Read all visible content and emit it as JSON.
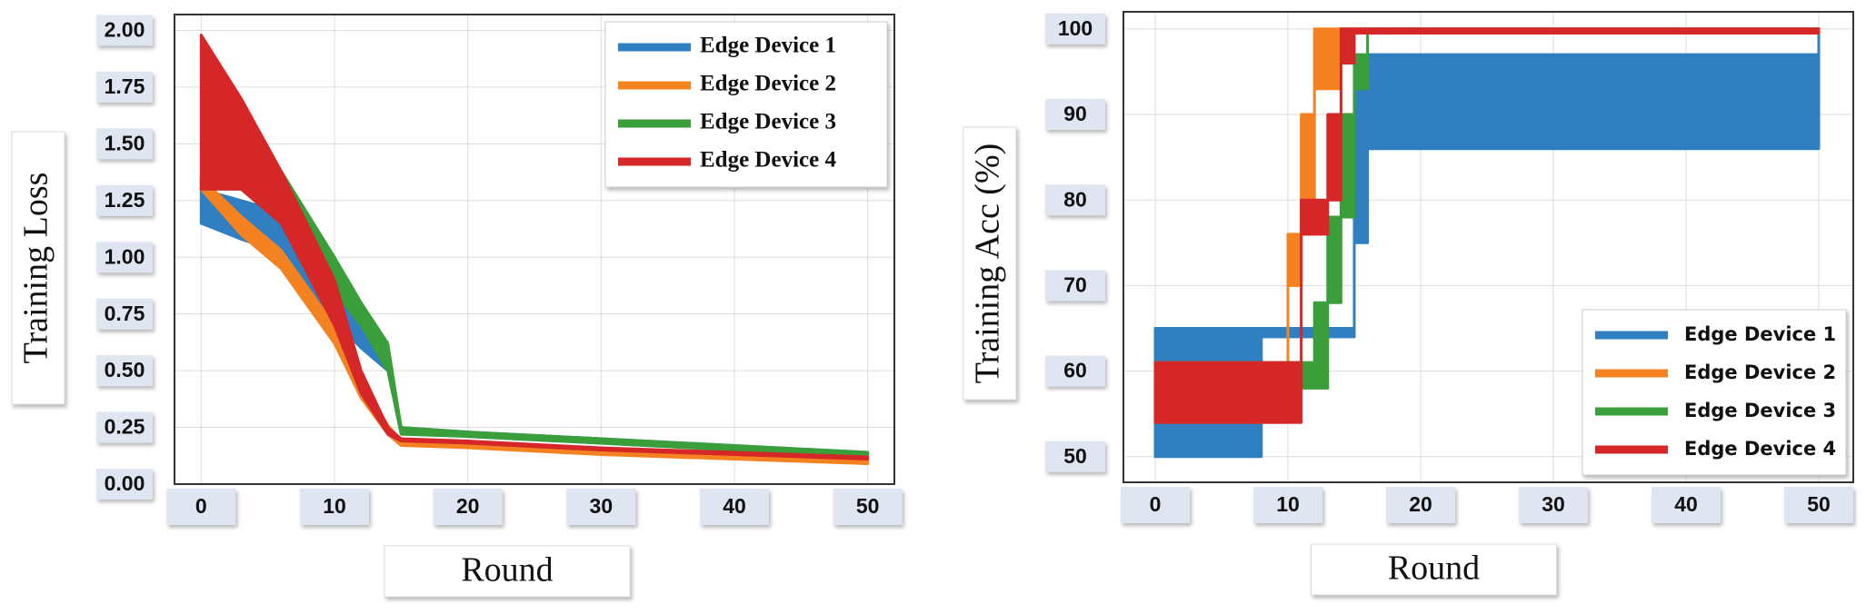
{
  "chart_data": [
    {
      "type": "band",
      "ylabel": "Training Loss",
      "xlabel": "Round",
      "x": [
        0,
        3,
        6,
        10,
        12,
        14,
        15,
        20,
        30,
        40,
        50
      ],
      "xlim": [
        -2,
        52
      ],
      "xticks": [
        0,
        10,
        20,
        30,
        40,
        50
      ],
      "ylim": [
        0,
        2.07
      ],
      "yticks": [
        {
          "value": 0,
          "label": "0.00"
        },
        {
          "value": 0.25,
          "label": "0.25"
        },
        {
          "value": 0.5,
          "label": "0.50"
        },
        {
          "value": 0.75,
          "label": "0.75"
        },
        {
          "value": 1,
          "label": "1.00"
        },
        {
          "value": 1.25,
          "label": "1.25"
        },
        {
          "value": 1.5,
          "label": "1.50"
        },
        {
          "value": 1.75,
          "label": "1.75"
        },
        {
          "value": 2,
          "label": "2.00"
        }
      ],
      "grid": true,
      "legend": "upper right",
      "step": false,
      "series": [
        {
          "name": "Edge Device 1",
          "color": "#2f7fc1",
          "lower": [
            1.15,
            1.08,
            1.02,
            0.72,
            0.6,
            0.5,
            0.23,
            0.21,
            0.18,
            0.15,
            0.13
          ],
          "upper": [
            1.3,
            1.25,
            1.2,
            0.9,
            0.72,
            0.6,
            0.25,
            0.23,
            0.2,
            0.17,
            0.14
          ]
        },
        {
          "name": "Edge Device 2",
          "color": "#f58220",
          "lower": [
            1.3,
            1.1,
            0.95,
            0.62,
            0.38,
            0.22,
            0.17,
            0.16,
            0.13,
            0.11,
            0.09
          ],
          "upper": [
            1.35,
            1.18,
            1.03,
            0.7,
            0.45,
            0.26,
            0.19,
            0.18,
            0.15,
            0.12,
            0.1
          ]
        },
        {
          "name": "Edge Device 3",
          "color": "#3a9e3a",
          "lower": [
            1.3,
            1.3,
            1.3,
            0.85,
            0.7,
            0.5,
            0.22,
            0.21,
            0.18,
            0.15,
            0.13
          ],
          "upper": [
            1.35,
            1.36,
            1.38,
            1.0,
            0.8,
            0.62,
            0.25,
            0.23,
            0.2,
            0.17,
            0.14
          ]
        },
        {
          "name": "Edge Device 4",
          "color": "#d62728",
          "lower": [
            1.3,
            1.3,
            1.15,
            0.7,
            0.4,
            0.22,
            0.19,
            0.18,
            0.15,
            0.13,
            0.11
          ],
          "upper": [
            1.98,
            1.7,
            1.38,
            0.9,
            0.5,
            0.25,
            0.2,
            0.19,
            0.16,
            0.14,
            0.12
          ]
        }
      ]
    },
    {
      "type": "band",
      "ylabel": "Training Acc (%)",
      "xlabel": "Round",
      "x": [
        0,
        8,
        10,
        11,
        12,
        13,
        14,
        15,
        16,
        50
      ],
      "xlim": [
        -2.4,
        52.6
      ],
      "xticks": [
        0,
        10,
        20,
        30,
        40,
        50
      ],
      "ylim": [
        47,
        102
      ],
      "yticks": [
        50,
        60,
        70,
        80,
        90,
        100
      ],
      "grid": true,
      "legend": "lower right",
      "step": true,
      "series": [
        {
          "name": "Edge Device 1",
          "color": "#2f7fc1",
          "lower": [
            50,
            64,
            64,
            64,
            64,
            64,
            64,
            75,
            86,
            99.5
          ],
          "upper": [
            65,
            65,
            65,
            65,
            65,
            65,
            65,
            96,
            97,
            100
          ]
        },
        {
          "name": "Edge Device 2",
          "color": "#f58220",
          "lower": [
            54,
            54,
            70,
            76,
            93,
            93,
            99.5,
            99.5,
            99.5,
            99.5
          ],
          "upper": [
            61,
            61,
            76,
            90,
            100,
            100,
            100,
            100,
            100,
            100
          ]
        },
        {
          "name": "Edge Device 3",
          "color": "#3a9e3a",
          "lower": [
            58,
            58,
            58,
            58,
            58,
            68,
            78,
            93,
            99.5,
            99.5
          ],
          "upper": [
            61,
            61,
            61,
            61,
            68,
            78,
            90,
            97,
            100,
            100
          ]
        },
        {
          "name": "Edge Device 4",
          "color": "#d62728",
          "lower": [
            54,
            54,
            54,
            76,
            76,
            80,
            96,
            99.5,
            99.5,
            99.5
          ],
          "upper": [
            61,
            61,
            61,
            80,
            80,
            90,
            100,
            100,
            100,
            100
          ]
        }
      ]
    }
  ]
}
